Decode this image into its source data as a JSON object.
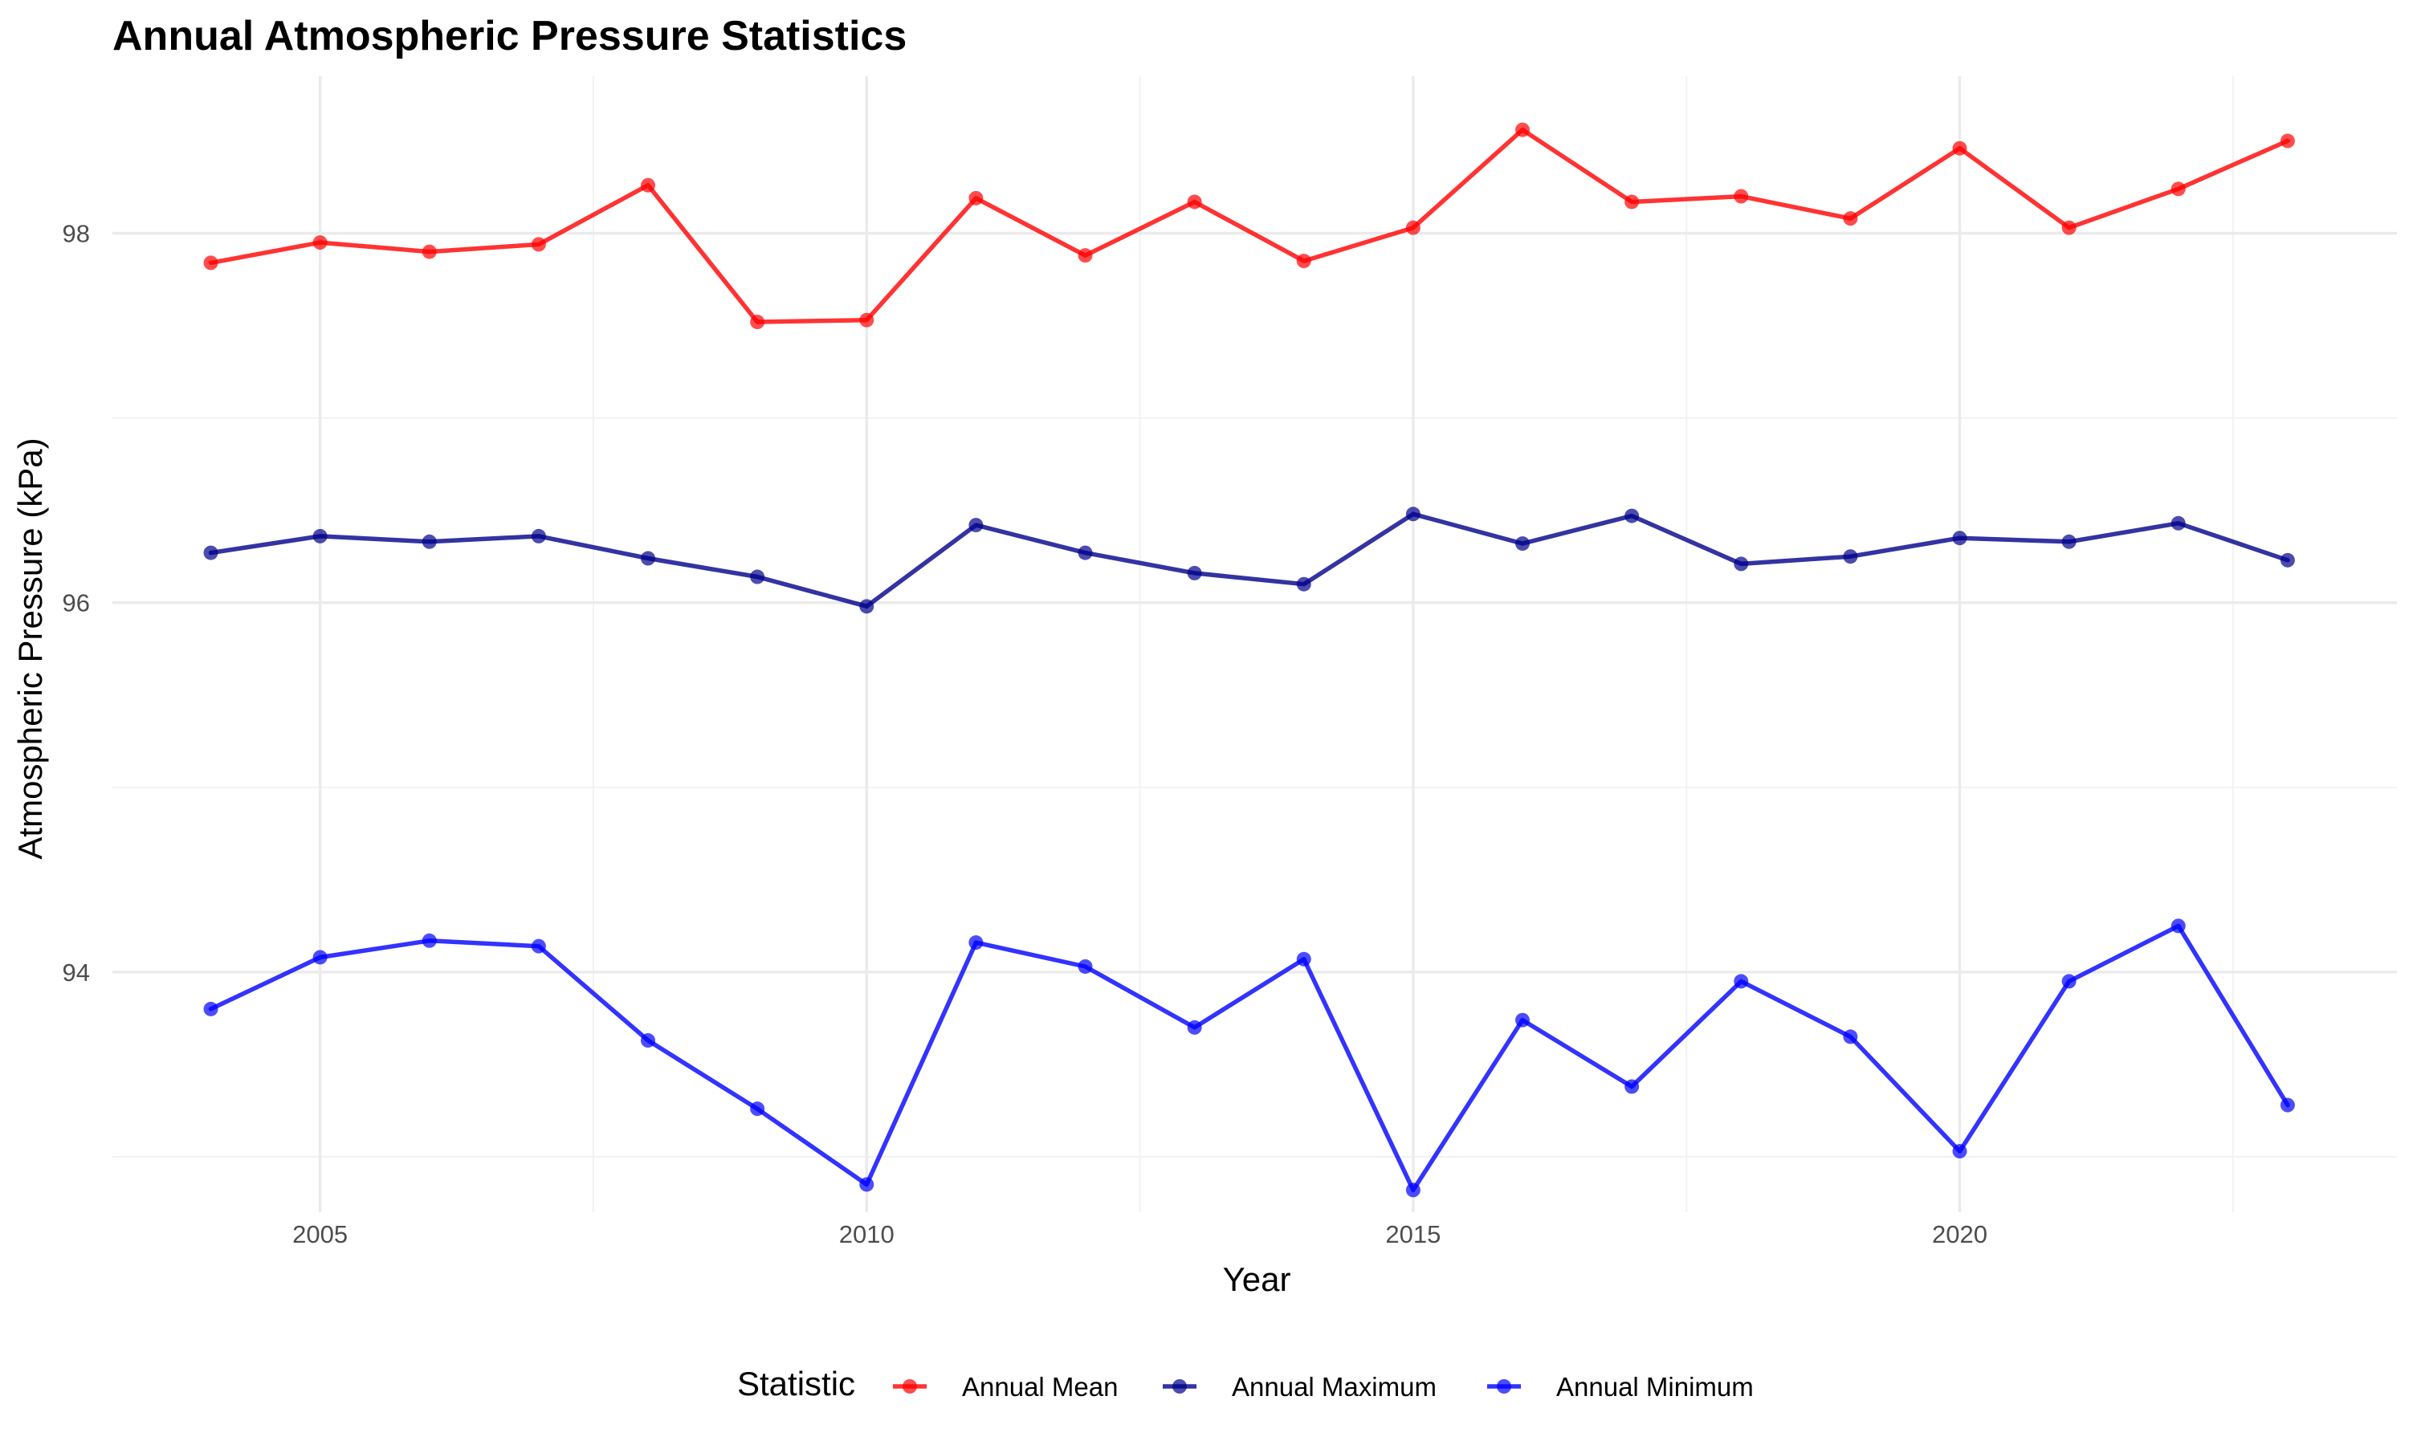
{
  "chart_data": {
    "type": "line",
    "title": "Annual Atmospheric Pressure Statistics",
    "xlabel": "Year",
    "ylabel": "Atmospheric Pressure (kPa)",
    "x": [
      2004,
      2005,
      2006,
      2007,
      2008,
      2009,
      2010,
      2011,
      2012,
      2013,
      2014,
      2015,
      2016,
      2017,
      2018,
      2019,
      2020,
      2021,
      2022,
      2023
    ],
    "xlim": [
      2003.1,
      2024.0
    ],
    "ylim": [
      92.7,
      98.85
    ],
    "x_ticks": [
      2005,
      2010,
      2015,
      2020
    ],
    "y_ticks": [
      94,
      96,
      98
    ],
    "grid": true,
    "legend_title": "Statistic",
    "legend_position": "bottom",
    "series": [
      {
        "name": "Annual Mean",
        "color": "#ff0000",
        "values": [
          97.84,
          97.95,
          97.9,
          97.94,
          98.26,
          97.52,
          97.53,
          98.19,
          97.88,
          98.17,
          97.85,
          98.03,
          98.56,
          98.17,
          98.2,
          98.08,
          98.46,
          98.03,
          98.24,
          98.5
        ]
      },
      {
        "name": "Annual Maximum",
        "color": "#00008b",
        "values": [
          96.27,
          96.36,
          96.33,
          96.36,
          96.24,
          96.14,
          95.98,
          96.42,
          96.27,
          96.16,
          96.1,
          96.48,
          96.32,
          96.47,
          96.21,
          96.25,
          96.35,
          96.33,
          96.43,
          96.23
        ]
      },
      {
        "name": "Annual Minimum",
        "color": "#0000ff",
        "values": [
          93.8,
          94.08,
          94.17,
          94.14,
          93.63,
          93.26,
          92.85,
          94.16,
          94.03,
          93.7,
          94.07,
          92.82,
          93.74,
          93.38,
          93.95,
          93.65,
          93.03,
          93.95,
          94.25,
          93.28
        ]
      }
    ]
  }
}
